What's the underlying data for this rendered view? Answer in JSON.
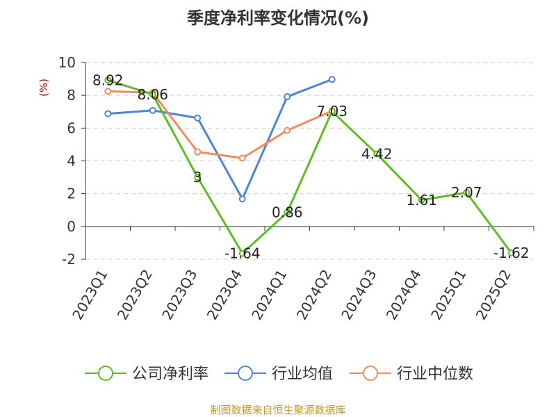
{
  "chart_data": {
    "type": "line",
    "title": "季度净利率变化情况(%)",
    "unit_label": "(%)",
    "categories": [
      "2023Q1",
      "2023Q2",
      "2023Q3",
      "2023Q4",
      "2024Q1",
      "2024Q2",
      "2024Q3",
      "2024Q4",
      "2025Q1",
      "2025Q2"
    ],
    "ylim": [
      -2,
      10
    ],
    "yticks": [
      -2,
      0,
      2,
      4,
      6,
      8,
      10
    ],
    "grid": true,
    "legend_position": "bottom",
    "series": [
      {
        "name": "公司净利率",
        "color": "#5bbf21",
        "values": [
          8.92,
          8.06,
          3,
          -1.64,
          0.86,
          7.03,
          4.42,
          1.61,
          2.07,
          -1.62
        ],
        "labels": [
          "8.92",
          "8.06",
          "3",
          "-1.64",
          "0.86",
          "7.03",
          "4.42",
          "1.61",
          "2.07",
          "-1.62"
        ]
      },
      {
        "name": "行业均值",
        "color": "#4e84d8",
        "values": [
          6.88,
          7.08,
          6.62,
          1.68,
          7.92,
          8.97,
          null,
          null,
          null,
          null
        ]
      },
      {
        "name": "行业中位数",
        "color": "#f58b5b",
        "values": [
          8.25,
          8.16,
          4.55,
          4.17,
          5.86,
          7.05,
          null,
          null,
          null,
          null
        ]
      }
    ],
    "source": "制图数据来自恒生聚源数据库"
  }
}
